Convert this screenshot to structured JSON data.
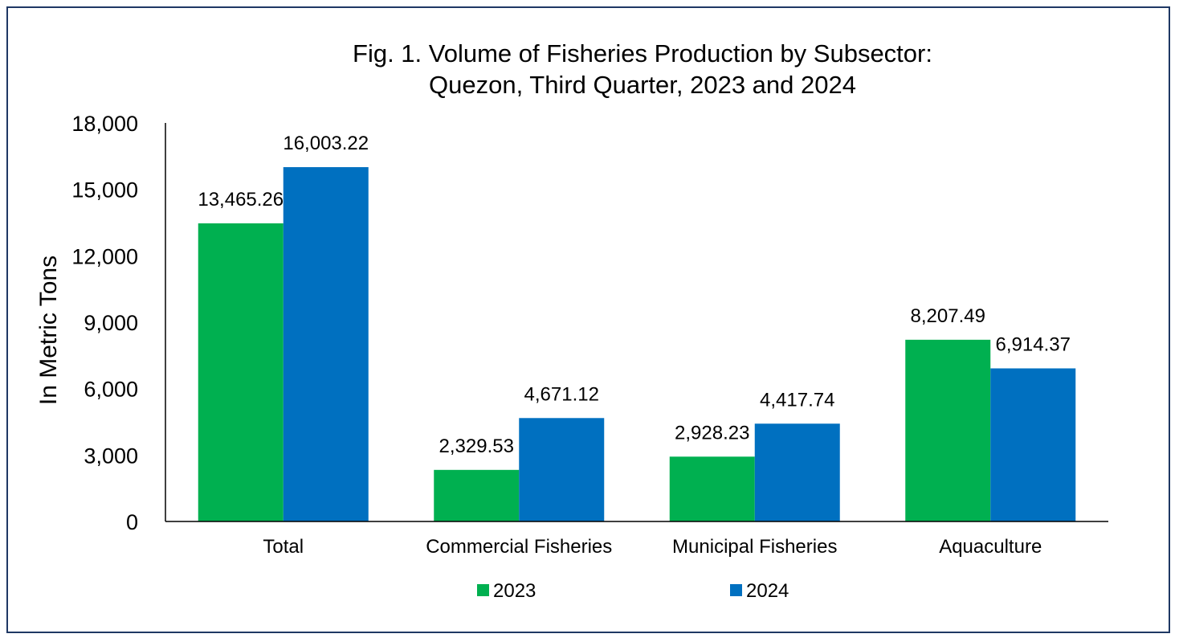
{
  "chart_data": {
    "type": "bar",
    "title_line1": "Fig. 1. Volume of Fisheries Production by Subsector:",
    "title_line2": "Quezon, Third Quarter, 2023 and 2024",
    "ylabel": "In Metric Tons",
    "ylim": [
      0,
      18000
    ],
    "yticks": [
      "0",
      "3,000",
      "6,000",
      "9,000",
      "12,000",
      "15,000",
      "18,000"
    ],
    "ytick_values": [
      0,
      3000,
      6000,
      9000,
      12000,
      15000,
      18000
    ],
    "categories": [
      "Total",
      "Commercial Fisheries",
      "Municipal Fisheries",
      "Aquaculture"
    ],
    "series": [
      {
        "name": "2023",
        "color": "#00b050",
        "values": [
          13465.26,
          2329.53,
          2928.23,
          8207.49
        ],
        "labels": [
          "13,465.26",
          "2,329.53",
          "2,928.23",
          "8,207.49"
        ]
      },
      {
        "name": "2024",
        "color": "#0070c0",
        "values": [
          16003.22,
          4671.12,
          4417.74,
          6914.37
        ],
        "labels": [
          "16,003.22",
          "4,671.12",
          "4,417.74",
          "6,914.37"
        ]
      }
    ],
    "grid": false,
    "legend_position": "bottom"
  },
  "colors": {
    "frame": "#1f3864",
    "axis": "#000000"
  }
}
